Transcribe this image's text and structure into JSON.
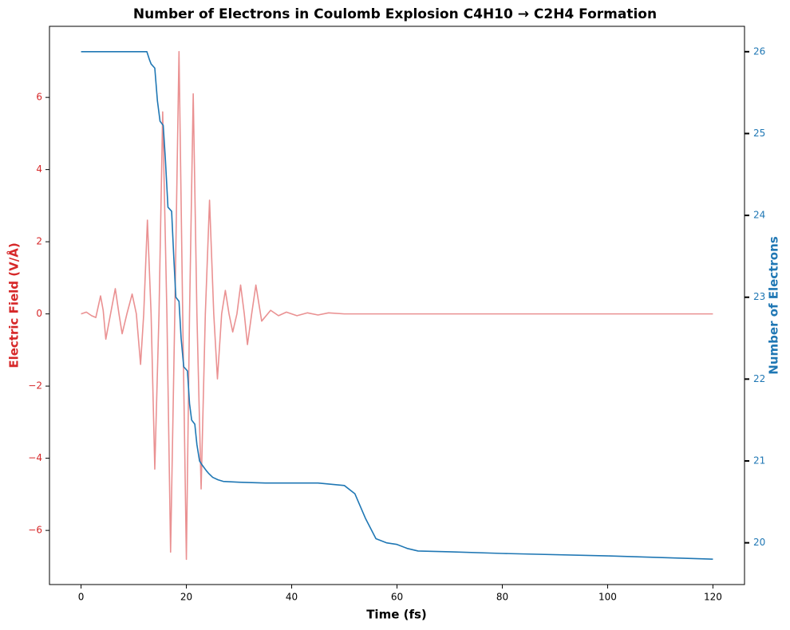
{
  "chart_data": {
    "type": "line",
    "title": "Number of Electrons in Coulomb Explosion C4H10 → C2H4 Formation",
    "x_label": "Time (fs)",
    "y_label": "Electric Field (V/Å)",
    "y2_label": "Number of Electrons",
    "xlim": [
      -6,
      126
    ],
    "xticks": [
      0,
      20,
      40,
      60,
      80,
      100,
      120
    ],
    "ylim": [
      -7.5,
      7.97
    ],
    "yticks": [
      {
        "value": -6,
        "label": "−6"
      },
      {
        "value": -4,
        "label": "−4"
      },
      {
        "value": -2,
        "label": "−2"
      },
      0,
      2,
      4,
      6
    ],
    "y2lim": [
      19.49,
      26.31
    ],
    "y2ticks": [
      20,
      21,
      22,
      23,
      24,
      25,
      26
    ],
    "y_color": "#d62728",
    "y2_color": "#1f77b4",
    "series": [
      {
        "name": "Electric Field",
        "color": "#ea9192",
        "axis": "y",
        "x": [
          0,
          1,
          2,
          2.8,
          3.7,
          4.2,
          4.7,
          5.6,
          6.5,
          7.2,
          7.8,
          8.7,
          9.7,
          10.5,
          11.3,
          11.9,
          12.6,
          13.3,
          14,
          14.8,
          15.5,
          16.3,
          17,
          17.8,
          18.6,
          19.3,
          20,
          20.6,
          21.3,
          22,
          22.8,
          23.6,
          24.4,
          25.2,
          25.9,
          26.7,
          27.4,
          28.1,
          28.8,
          29.6,
          30.3,
          31,
          31.6,
          32.4,
          33.2,
          34.3,
          36,
          37.5,
          39,
          41,
          43,
          45,
          47,
          50,
          60,
          80,
          100,
          120
        ],
        "values": [
          0,
          0.05,
          -0.05,
          -0.1,
          0.5,
          0.1,
          -0.7,
          0,
          0.7,
          0,
          -0.55,
          0,
          0.55,
          0,
          -1.4,
          0,
          2.6,
          0,
          -4.3,
          0,
          5.6,
          0,
          -6.6,
          0,
          7.27,
          0,
          -6.8,
          0,
          6.1,
          0,
          -4.85,
          0,
          3.15,
          0,
          -1.8,
          0,
          0.65,
          0,
          -0.5,
          0,
          0.8,
          0,
          -0.85,
          0,
          0.8,
          -0.2,
          0.1,
          -0.05,
          0.05,
          -0.05,
          0.03,
          -0.03,
          0.03,
          0,
          0,
          0,
          0,
          0
        ]
      },
      {
        "name": "Number of Electrons",
        "color": "#1f77b4",
        "axis": "y2",
        "x": [
          0,
          12.5,
          13,
          13.3,
          14,
          14.5,
          15,
          15.6,
          16,
          16.5,
          17.2,
          17.6,
          18,
          18.6,
          19,
          19.5,
          20.2,
          20.6,
          21,
          21.6,
          22,
          22.5,
          23,
          23.8,
          24.2,
          25,
          26,
          27,
          30,
          35,
          40,
          45,
          50,
          52,
          54,
          56,
          58,
          60,
          62,
          64,
          70,
          80,
          100,
          120
        ],
        "values": [
          26,
          26,
          25.9,
          25.85,
          25.8,
          25.4,
          25.15,
          25.1,
          24.7,
          24.1,
          24.05,
          23.5,
          23.0,
          22.95,
          22.5,
          22.15,
          22.1,
          21.7,
          21.5,
          21.45,
          21.2,
          21.0,
          20.95,
          20.88,
          20.85,
          20.8,
          20.77,
          20.75,
          20.74,
          20.73,
          20.73,
          20.73,
          20.7,
          20.6,
          20.3,
          20.05,
          20.0,
          19.98,
          19.93,
          19.9,
          19.89,
          19.87,
          19.84,
          19.8
        ]
      }
    ]
  }
}
